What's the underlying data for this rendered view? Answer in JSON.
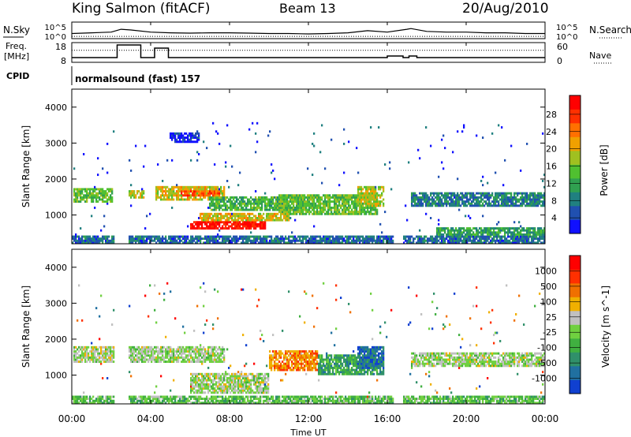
{
  "header": {
    "station": "King Salmon (fitACF)",
    "beam": "Beam 13",
    "date": "20/Aug/2010"
  },
  "side_labels": {
    "nsky": "N.Sky",
    "nsearch": "N.Search",
    "freq": "Freq.",
    "freq_unit": "[MHz]",
    "nave": "Nave",
    "cpid": "CPID"
  },
  "cpid_text": "normalsound (fast) 157",
  "time_axis": {
    "label": "Time UT",
    "ticks": [
      "00:00",
      "04:00",
      "08:00",
      "12:00",
      "16:00",
      "20:00",
      "00:00"
    ]
  },
  "chart_data": [
    {
      "type": "line",
      "name": "noise",
      "left_ticks": [
        "10^5",
        "10^0"
      ],
      "right_ticks": [
        "10^5",
        "10^0"
      ],
      "series": [
        {
          "name": "N.Sky",
          "style": "solid",
          "x": [
            0,
            1,
            2,
            2.5,
            3,
            4,
            5,
            6,
            7,
            8,
            9,
            10,
            11,
            12,
            13,
            14,
            15,
            16,
            17,
            17.2,
            18,
            19,
            20,
            21,
            22,
            23,
            24
          ],
          "y": [
            0.25,
            0.3,
            0.35,
            0.55,
            0.5,
            0.35,
            0.3,
            0.28,
            0.3,
            0.3,
            0.28,
            0.25,
            0.25,
            0.22,
            0.25,
            0.3,
            0.45,
            0.35,
            0.55,
            0.6,
            0.4,
            0.35,
            0.35,
            0.3,
            0.3,
            0.25,
            0.25
          ]
        },
        {
          "name": "N.Search",
          "style": "dotted",
          "x": [
            0,
            24
          ],
          "y": [
            0.05,
            0.05
          ]
        }
      ]
    },
    {
      "type": "line",
      "name": "freq-nave",
      "left_ticks": [
        "18",
        "8"
      ],
      "right_ticks": [
        "60",
        "0"
      ],
      "series": [
        {
          "name": "Freq",
          "style": "solid",
          "x": [
            0,
            2.3,
            2.3,
            3.5,
            3.5,
            4.2,
            4.2,
            4.9,
            4.9,
            16,
            16,
            16.8,
            16.8,
            17.1,
            17.1,
            17.5,
            17.5,
            24
          ],
          "y": [
            10,
            10,
            18,
            18,
            10,
            10,
            16,
            16,
            10,
            10,
            11,
            11,
            10,
            10,
            11,
            11,
            10,
            10
          ]
        },
        {
          "name": "Nave",
          "style": "dotted",
          "x": [
            0,
            24
          ],
          "y": [
            40,
            40
          ]
        }
      ]
    },
    {
      "type": "heatmap",
      "name": "power",
      "ylabel": "Slant Range [km]",
      "yticks": [
        "1000",
        "2000",
        "3000",
        "4000"
      ],
      "ylim": [
        200,
        4500
      ],
      "xlim": [
        0,
        24
      ],
      "colorbar": {
        "label": "Power [dB]",
        "ticks": [
          "4",
          "8",
          "12",
          "16",
          "20",
          "24",
          "28"
        ],
        "colors": [
          "#1010ff",
          "#2050b0",
          "#208080",
          "#30a050",
          "#50c030",
          "#a0c020",
          "#f0a000",
          "#ff7000",
          "#ff3000",
          "#ff0000"
        ]
      },
      "features": [
        {
          "t0": 0.1,
          "t1": 2.1,
          "r0": 1350,
          "r1": 1750,
          "level": 0.45
        },
        {
          "t0": 2.9,
          "t1": 3.7,
          "r0": 1450,
          "r1": 1700,
          "level": 0.55
        },
        {
          "t0": 4.2,
          "t1": 7.8,
          "r0": 1400,
          "r1": 1800,
          "level": 0.6
        },
        {
          "t0": 5.5,
          "t1": 7.5,
          "r0": 1500,
          "r1": 1700,
          "level": 0.8
        },
        {
          "t0": 7.0,
          "t1": 12.0,
          "r0": 1100,
          "r1": 1500,
          "level": 0.4
        },
        {
          "t0": 10.5,
          "t1": 15.5,
          "r0": 1000,
          "r1": 1550,
          "level": 0.45
        },
        {
          "t0": 14.5,
          "t1": 15.8,
          "r0": 1250,
          "r1": 1800,
          "level": 0.55
        },
        {
          "t0": 6.0,
          "t1": 9.8,
          "r0": 600,
          "r1": 850,
          "level": 0.95
        },
        {
          "t0": 6.5,
          "t1": 11.0,
          "r0": 850,
          "r1": 1050,
          "level": 0.6
        },
        {
          "t0": 17.2,
          "t1": 24.0,
          "r0": 1250,
          "r1": 1650,
          "level": 0.25
        },
        {
          "t0": 18.5,
          "t1": 24.0,
          "r0": 400,
          "r1": 650,
          "level": 0.35
        },
        {
          "t0": 0.0,
          "t1": 24.0,
          "r0": 200,
          "r1": 450,
          "level": 0.2
        },
        {
          "t0": 5.0,
          "t1": 6.5,
          "r0": 3000,
          "r1": 3300,
          "level": 0.1
        }
      ]
    },
    {
      "type": "heatmap",
      "name": "velocity",
      "ylabel": "Slant Range [km]",
      "yticks": [
        "1000",
        "2000",
        "3000",
        "4000"
      ],
      "ylim": [
        200,
        4500
      ],
      "xlim": [
        0,
        24
      ],
      "colorbar": {
        "label": "Velocity [m s^-1]",
        "ticks": [
          "1000",
          "500",
          "100",
          "25",
          "-25",
          "-100",
          "-500",
          "-1000"
        ],
        "colors": [
          "#1040d0",
          "#2070a0",
          "#30906a",
          "#40b040",
          "#70d040",
          "#c0c0c0",
          "#f0b000",
          "#f07000",
          "#ff3000",
          "#ff0000"
        ]
      },
      "features": [
        {
          "t0": 0.1,
          "t1": 7.8,
          "r0": 1350,
          "r1": 1800,
          "level": 0.5
        },
        {
          "t0": 6.0,
          "t1": 10.0,
          "r0": 500,
          "r1": 1050,
          "level": 0.5
        },
        {
          "t0": 10.0,
          "t1": 12.5,
          "r0": 1100,
          "r1": 1700,
          "level": 0.72
        },
        {
          "t0": 12.5,
          "t1": 15.8,
          "r0": 1000,
          "r1": 1600,
          "level": 0.3
        },
        {
          "t0": 14.5,
          "t1": 15.8,
          "r0": 1200,
          "r1": 1800,
          "level": 0.15
        },
        {
          "t0": 17.2,
          "t1": 24.0,
          "r0": 1250,
          "r1": 1650,
          "level": 0.5
        },
        {
          "t0": 0.0,
          "t1": 24.0,
          "r0": 200,
          "r1": 450,
          "level": 0.4
        }
      ]
    }
  ]
}
